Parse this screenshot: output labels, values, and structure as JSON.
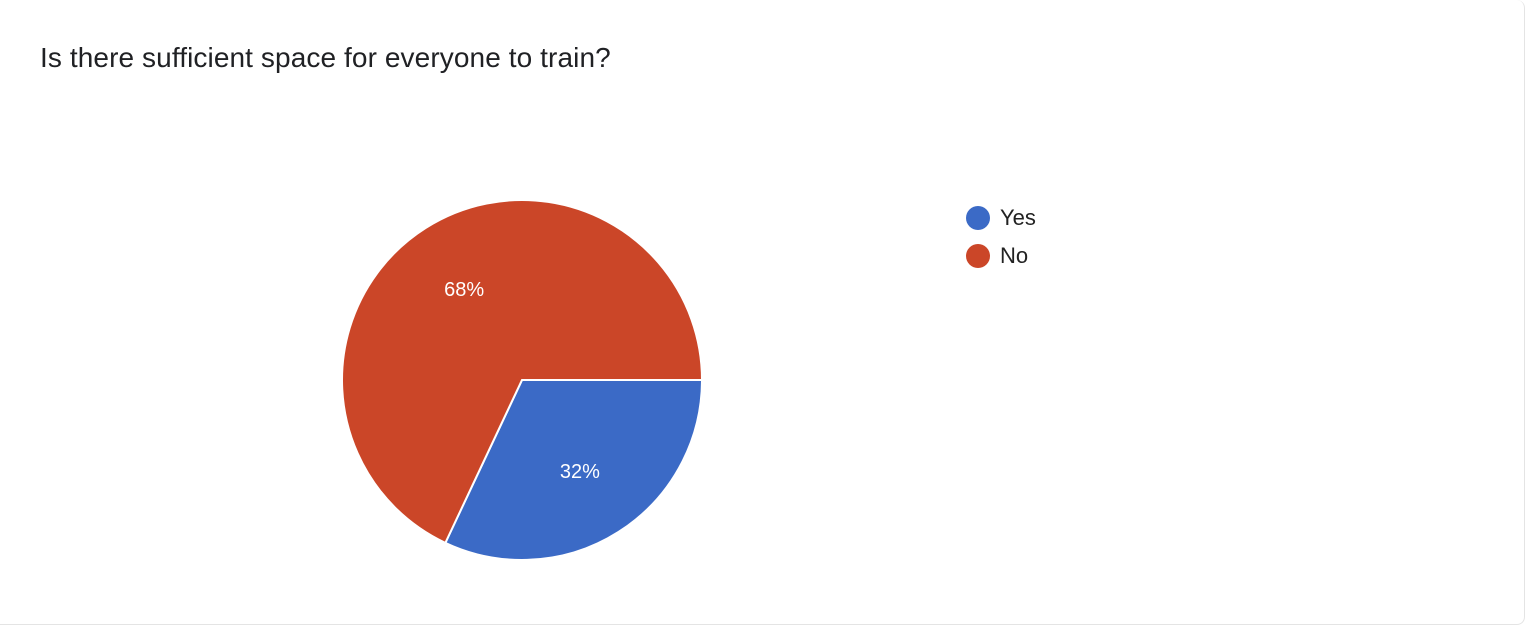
{
  "chart_data": {
    "type": "pie",
    "title": "Is there sufficient space for everyone to train?",
    "categories": [
      "Yes",
      "No"
    ],
    "values": [
      32,
      68
    ],
    "labels": [
      "32%",
      "68%"
    ],
    "colors": [
      "#3b6ac6",
      "#cb4628"
    ],
    "legend": "right"
  }
}
